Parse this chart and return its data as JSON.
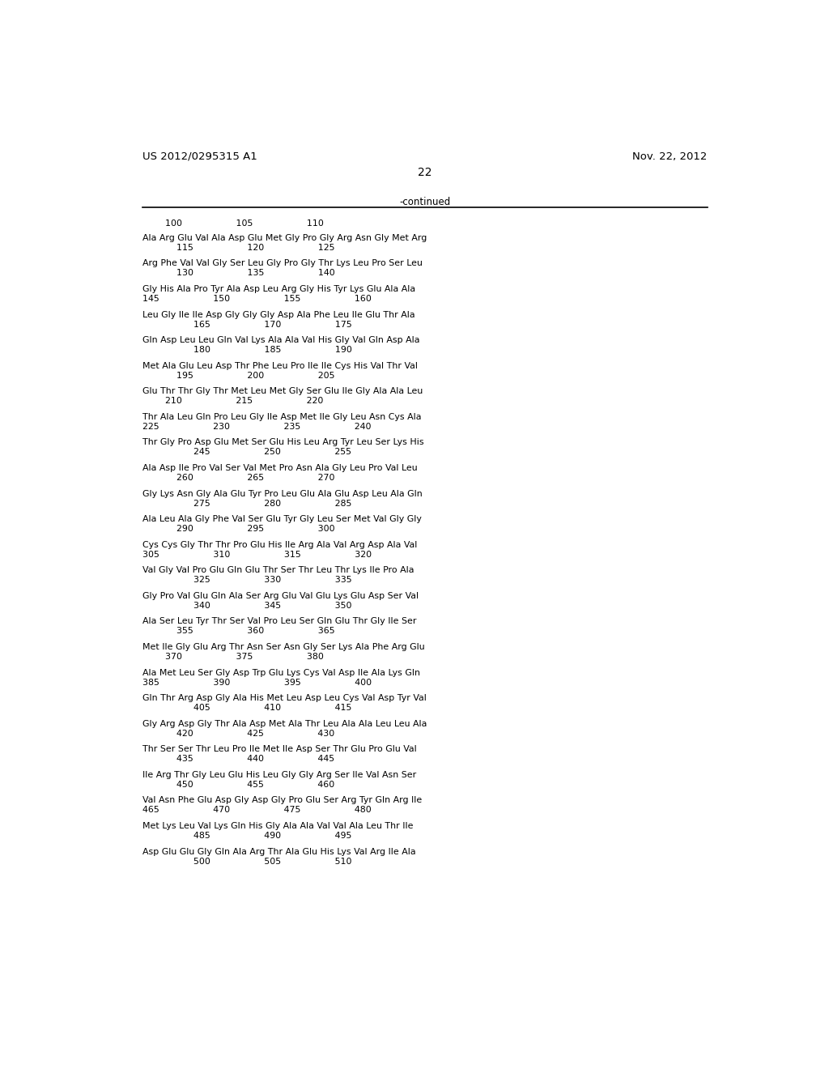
{
  "header_left": "US 2012/0295315 A1",
  "header_right": "Nov. 22, 2012",
  "page_number": "22",
  "continued_label": "-continued",
  "background_color": "#ffffff",
  "text_color": "#000000",
  "groups": [
    {
      "seq": "Ala Arg Glu Val Ala Asp Glu Met Gly Pro Gly Arg Asn Gly Met Arg",
      "nums": "            115                   120                   125"
    },
    {
      "seq": "Arg Phe Val Val Gly Ser Leu Gly Pro Gly Thr Lys Leu Pro Ser Leu",
      "nums": "            130                   135                   140"
    },
    {
      "seq": "Gly His Ala Pro Tyr Ala Asp Leu Arg Gly His Tyr Lys Glu Ala Ala",
      "nums": "145                   150                   155                   160"
    },
    {
      "seq": "Leu Gly Ile Ile Asp Gly Gly Gly Asp Ala Phe Leu Ile Glu Thr Ala",
      "nums": "                  165                   170                   175"
    },
    {
      "seq": "Gln Asp Leu Leu Gln Val Lys Ala Ala Val His Gly Val Gln Asp Ala",
      "nums": "                  180                   185                   190"
    },
    {
      "seq": "Met Ala Glu Leu Asp Thr Phe Leu Pro Ile Ile Cys His Val Thr Val",
      "nums": "            195                   200                   205"
    },
    {
      "seq": "Glu Thr Thr Gly Thr Met Leu Met Gly Ser Glu Ile Gly Ala Ala Leu",
      "nums": "        210                   215                   220"
    },
    {
      "seq": "Thr Ala Leu Gln Pro Leu Gly Ile Asp Met Ile Gly Leu Asn Cys Ala",
      "nums": "225                   230                   235                   240"
    },
    {
      "seq": "Thr Gly Pro Asp Glu Met Ser Glu His Leu Arg Tyr Leu Ser Lys His",
      "nums": "                  245                   250                   255"
    },
    {
      "seq": "Ala Asp Ile Pro Val Ser Val Met Pro Asn Ala Gly Leu Pro Val Leu",
      "nums": "            260                   265                   270"
    },
    {
      "seq": "Gly Lys Asn Gly Ala Glu Tyr Pro Leu Glu Ala Glu Asp Leu Ala Gln",
      "nums": "                  275                   280                   285"
    },
    {
      "seq": "Ala Leu Ala Gly Phe Val Ser Glu Tyr Gly Leu Ser Met Val Gly Gly",
      "nums": "            290                   295                   300"
    },
    {
      "seq": "Cys Cys Gly Thr Thr Pro Glu His Ile Arg Ala Val Arg Asp Ala Val",
      "nums": "305                   310                   315                   320"
    },
    {
      "seq": "Val Gly Val Pro Glu Gln Glu Thr Ser Thr Leu Thr Lys Ile Pro Ala",
      "nums": "                  325                   330                   335"
    },
    {
      "seq": "Gly Pro Val Glu Gln Ala Ser Arg Glu Val Glu Lys Glu Asp Ser Val",
      "nums": "                  340                   345                   350"
    },
    {
      "seq": "Ala Ser Leu Tyr Thr Ser Val Pro Leu Ser Gln Glu Thr Gly Ile Ser",
      "nums": "            355                   360                   365"
    },
    {
      "seq": "Met Ile Gly Glu Arg Thr Asn Ser Asn Gly Ser Lys Ala Phe Arg Glu",
      "nums": "        370                   375                   380"
    },
    {
      "seq": "Ala Met Leu Ser Gly Asp Trp Glu Lys Cys Val Asp Ile Ala Lys Gln",
      "nums": "385                   390                   395                   400"
    },
    {
      "seq": "Gln Thr Arg Asp Gly Ala His Met Leu Asp Leu Cys Val Asp Tyr Val",
      "nums": "                  405                   410                   415"
    },
    {
      "seq": "Gly Arg Asp Gly Thr Ala Asp Met Ala Thr Leu Ala Ala Leu Leu Ala",
      "nums": "            420                   425                   430"
    },
    {
      "seq": "Thr Ser Ser Thr Leu Pro Ile Met Ile Asp Ser Thr Glu Pro Glu Val",
      "nums": "            435                   440                   445"
    },
    {
      "seq": "Ile Arg Thr Gly Leu Glu His Leu Gly Gly Arg Ser Ile Val Asn Ser",
      "nums": "            450                   455                   460"
    },
    {
      "seq": "Val Asn Phe Glu Asp Gly Asp Gly Pro Glu Ser Arg Tyr Gln Arg Ile",
      "nums": "465                   470                   475                   480"
    },
    {
      "seq": "Met Lys Leu Val Lys Gln His Gly Ala Ala Val Val Ala Leu Thr Ile",
      "nums": "                  485                   490                   495"
    },
    {
      "seq": "Asp Glu Glu Gly Gln Ala Arg Thr Ala Glu His Lys Val Arg Ile Ala",
      "nums": "                  500                   505                   510"
    }
  ]
}
